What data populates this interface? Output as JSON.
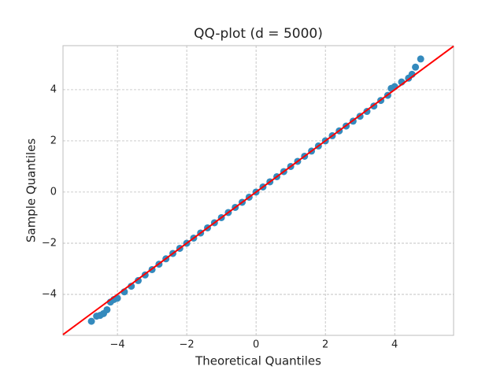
{
  "chart_data": {
    "type": "scatter",
    "title": "QQ-plot (d = 5000)",
    "x_label": "Theoretical Quantiles",
    "y_label": "Sample Quantiles",
    "x": [
      -4.75,
      -4.6,
      -4.5,
      -4.4,
      -4.3,
      -4.2,
      -4.1,
      -4.0,
      -3.8,
      -3.6,
      -3.4,
      -3.2,
      -3.0,
      -2.8,
      -2.6,
      -2.4,
      -2.2,
      -2.0,
      -1.8,
      -1.6,
      -1.4,
      -1.2,
      -1.0,
      -0.8,
      -0.6,
      -0.4,
      -0.2,
      0.0,
      0.2,
      0.4,
      0.6,
      0.8,
      1.0,
      1.2,
      1.4,
      1.6,
      1.8,
      2.0,
      2.2,
      2.4,
      2.6,
      2.8,
      3.0,
      3.2,
      3.4,
      3.6,
      3.8,
      3.9,
      4.0,
      4.2,
      4.4,
      4.5,
      4.6,
      4.75
    ],
    "values": [
      -5.05,
      -4.85,
      -4.82,
      -4.75,
      -4.6,
      -4.3,
      -4.2,
      -4.15,
      -3.9,
      -3.68,
      -3.46,
      -3.24,
      -3.03,
      -2.82,
      -2.61,
      -2.4,
      -2.2,
      -2.0,
      -1.8,
      -1.6,
      -1.4,
      -1.2,
      -1.0,
      -0.8,
      -0.6,
      -0.4,
      -0.2,
      0.0,
      0.2,
      0.4,
      0.6,
      0.8,
      1.0,
      1.2,
      1.4,
      1.6,
      1.8,
      2.0,
      2.2,
      2.39,
      2.58,
      2.77,
      2.96,
      3.15,
      3.36,
      3.58,
      3.78,
      4.05,
      4.12,
      4.3,
      4.45,
      4.6,
      4.88,
      5.2
    ],
    "color": "#348abd",
    "reference_line": {
      "x": [
        -5.57,
        5.7
      ],
      "values": [
        -5.57,
        5.7
      ],
      "color": "#ff0000"
    },
    "xlim": [
      -5.57,
      5.7
    ],
    "ylim": [
      -5.6,
      5.72
    ],
    "xticks": [
      {
        "value": -4,
        "label": "−4"
      },
      {
        "value": -2,
        "label": "−2"
      },
      0,
      2,
      4
    ],
    "yticks": [
      {
        "value": -4,
        "label": "−4"
      },
      {
        "value": -2,
        "label": "−2"
      },
      0,
      2,
      4
    ],
    "grid": true
  }
}
